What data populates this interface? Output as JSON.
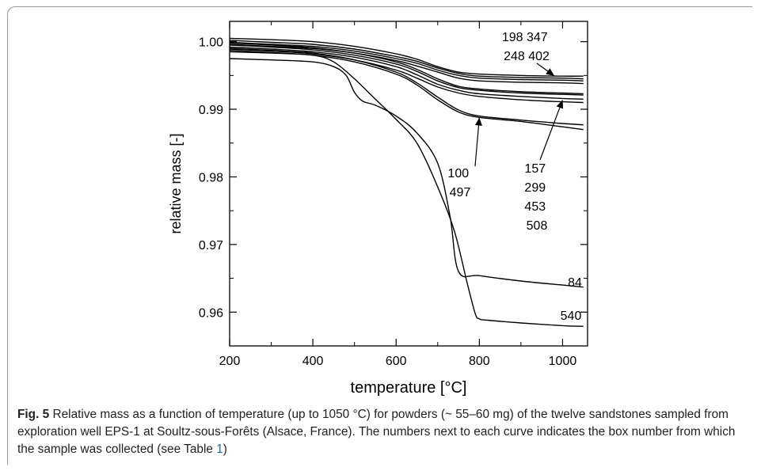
{
  "chart_data": {
    "type": "line",
    "title": "",
    "xlabel": "temperature [°C]",
    "ylabel": "relative mass [-]",
    "xlim": [
      200,
      1060
    ],
    "ylim": [
      0.955,
      1.003
    ],
    "xticks": [
      200,
      400,
      600,
      800,
      1000
    ],
    "yticks": [
      0.96,
      0.97,
      0.98,
      0.99,
      1.0
    ],
    "xtick_labels": [
      "200",
      "400",
      "600",
      "800",
      "1000"
    ],
    "ytick_labels": [
      "0.96",
      "0.97",
      "0.98",
      "0.99",
      "1.00"
    ],
    "grid": false,
    "legend": "none",
    "series": [
      {
        "x": [
          200,
          300,
          400,
          500,
          600,
          650,
          700,
          750,
          800,
          900,
          1000,
          1050
        ],
        "y": [
          1.0005,
          1.0003,
          1.0,
          0.9993,
          0.9982,
          0.9974,
          0.9963,
          0.9955,
          0.9952,
          0.995,
          0.9949,
          0.9949
        ]
      },
      {
        "x": [
          200,
          300,
          400,
          500,
          600,
          650,
          700,
          750,
          800,
          900,
          1000,
          1050
        ],
        "y": [
          1.0002,
          0.9999,
          0.9996,
          0.9989,
          0.9978,
          0.9971,
          0.9961,
          0.9953,
          0.9949,
          0.9947,
          0.9946,
          0.9945
        ]
      },
      {
        "x": [
          200,
          300,
          400,
          500,
          600,
          650,
          700,
          750,
          800,
          900,
          1000,
          1050
        ],
        "y": [
          0.9999,
          0.9996,
          0.9993,
          0.9986,
          0.9975,
          0.9968,
          0.9958,
          0.995,
          0.9946,
          0.9944,
          0.9943,
          0.9942
        ]
      },
      {
        "x": [
          200,
          300,
          400,
          500,
          600,
          650,
          700,
          750,
          800,
          900,
          1000,
          1050
        ],
        "y": [
          0.9996,
          0.9993,
          0.999,
          0.9983,
          0.9972,
          0.9964,
          0.9955,
          0.9946,
          0.9942,
          0.994,
          0.9939,
          0.9938
        ]
      },
      {
        "x": [
          200,
          300,
          400,
          500,
          600,
          650,
          700,
          750,
          800,
          900,
          1000,
          1050
        ],
        "y": [
          0.9998,
          0.9995,
          0.9991,
          0.9983,
          0.997,
          0.9959,
          0.9945,
          0.9934,
          0.993,
          0.9926,
          0.9924,
          0.9923
        ]
      },
      {
        "x": [
          200,
          300,
          400,
          500,
          600,
          650,
          700,
          750,
          800,
          900,
          1000,
          1050
        ],
        "y": [
          0.9995,
          0.9992,
          0.9988,
          0.998,
          0.9967,
          0.9956,
          0.9942,
          0.9932,
          0.9928,
          0.9924,
          0.9922,
          0.9921
        ]
      },
      {
        "x": [
          200,
          300,
          400,
          500,
          600,
          650,
          700,
          750,
          800,
          900,
          1000,
          1050
        ],
        "y": [
          0.9992,
          0.9989,
          0.9985,
          0.9977,
          0.9963,
          0.9951,
          0.9937,
          0.9928,
          0.9923,
          0.9919,
          0.9916,
          0.9915
        ]
      },
      {
        "x": [
          200,
          300,
          400,
          500,
          600,
          650,
          700,
          750,
          800,
          900,
          1000,
          1050
        ],
        "y": [
          0.9989,
          0.9986,
          0.9982,
          0.9973,
          0.9958,
          0.9946,
          0.9933,
          0.9924,
          0.9919,
          0.9914,
          0.9911,
          0.991
        ]
      },
      {
        "x": [
          200,
          300,
          400,
          500,
          600,
          650,
          700,
          750,
          800,
          900,
          1000,
          1050
        ],
        "y": [
          0.999,
          0.9987,
          0.9983,
          0.9973,
          0.9955,
          0.9939,
          0.9918,
          0.9899,
          0.989,
          0.9884,
          0.9879,
          0.9877
        ]
      },
      {
        "x": [
          200,
          300,
          400,
          500,
          600,
          650,
          700,
          750,
          800,
          900,
          1000,
          1050
        ],
        "y": [
          0.9987,
          0.9984,
          0.998,
          0.997,
          0.9952,
          0.9936,
          0.9914,
          0.9896,
          0.9888,
          0.9882,
          0.9874,
          0.987
        ]
      },
      {
        "x": [
          200,
          300,
          400,
          450,
          480,
          500,
          520,
          550,
          600,
          650,
          700,
          730,
          750,
          800,
          900,
          1000,
          1050
        ],
        "y": [
          0.9975,
          0.9973,
          0.997,
          0.9963,
          0.995,
          0.9925,
          0.9912,
          0.9906,
          0.989,
          0.9865,
          0.982,
          0.974,
          0.966,
          0.9654,
          0.9646,
          0.964,
          0.9637
        ]
      },
      {
        "x": [
          200,
          300,
          400,
          450,
          500,
          550,
          600,
          650,
          700,
          740,
          770,
          790,
          800,
          820,
          900,
          1000,
          1050
        ],
        "y": [
          0.9985,
          0.9983,
          0.998,
          0.997,
          0.9945,
          0.9915,
          0.9885,
          0.985,
          0.9785,
          0.972,
          0.9645,
          0.9598,
          0.959,
          0.9588,
          0.9584,
          0.958,
          0.9579
        ]
      }
    ],
    "annotations": [
      {
        "lines": [
          "198 347",
          "248 402"
        ]
      },
      {
        "lines": [
          "100",
          "497"
        ]
      },
      {
        "lines": [
          "157",
          "299",
          "453",
          "508"
        ]
      },
      {
        "lines": [
          "84"
        ]
      },
      {
        "lines": [
          "540"
        ]
      }
    ]
  },
  "caption": {
    "label": "Fig. 5",
    "text_before": " Relative mass as a function of temperature (up to 1050 °C) for powders (~ 55–60 mg) of the twelve sandstones sampled from exploration well EPS-1 at Soultz-sous-Forêts (Alsace, France). The numbers next to each curve indicates the box number from which the sample was collected (see Table ",
    "table_ref": "1",
    "text_after": ")"
  }
}
